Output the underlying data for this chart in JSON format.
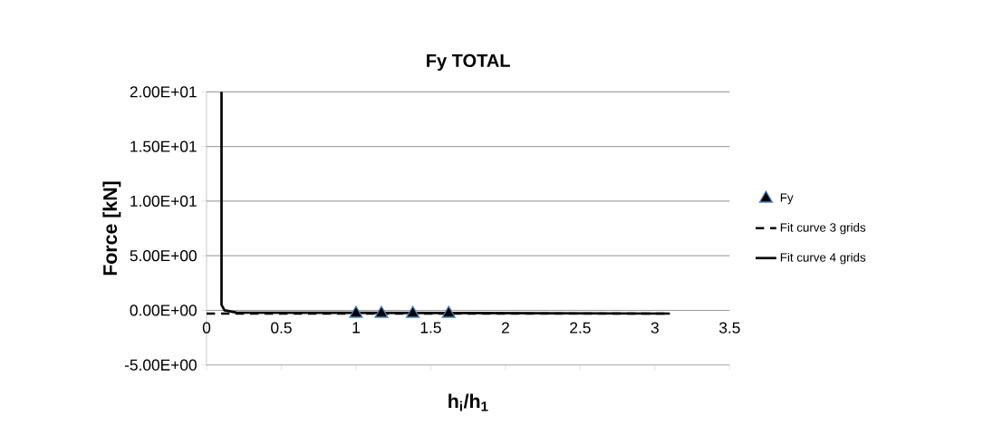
{
  "chart_data": {
    "type": "line",
    "title": "Fy TOTAL",
    "xlabel": "h$_{i}$/h$_{1}$",
    "ylabel": "Force [kN]",
    "series": [
      {
        "name": "Fy",
        "type": "scatter",
        "color": "#000000",
        "marker": "triangle",
        "x": [
          1.0,
          1.17,
          1.38,
          1.62
        ],
        "values": [
          -0.3,
          -0.3,
          -0.3,
          -0.3
        ]
      },
      {
        "name": "Fit curve 3 grids",
        "color": "#000000",
        "line_style": "dashed",
        "x": [
          0,
          3.1
        ],
        "values": [
          -0.3,
          -0.3
        ]
      },
      {
        "name": "Fit curve 4 grids",
        "color": "#000000",
        "line_style": "solid",
        "x": [
          0.1,
          0.1,
          0.12,
          0.2,
          3.1
        ],
        "values": [
          20,
          0.5,
          0,
          -0.2,
          -0.3
        ]
      }
    ],
    "xlim": [
      0,
      3.5
    ],
    "ylim": [
      -5,
      20
    ],
    "xticks": [
      0,
      0.5,
      1,
      1.5,
      2,
      2.5,
      3,
      3.5
    ],
    "yticks": [
      {
        "value": -5,
        "label": "-5.00E+00"
      },
      {
        "value": 0,
        "label": "0.00E+00"
      },
      {
        "value": 5,
        "label": "5.00E+00"
      },
      {
        "value": 10,
        "label": "1.00E+01"
      },
      {
        "value": 15,
        "label": "1.50E+01"
      },
      {
        "value": 20,
        "label": "2.00E+01"
      }
    ],
    "grid": "y",
    "legend": "right"
  }
}
